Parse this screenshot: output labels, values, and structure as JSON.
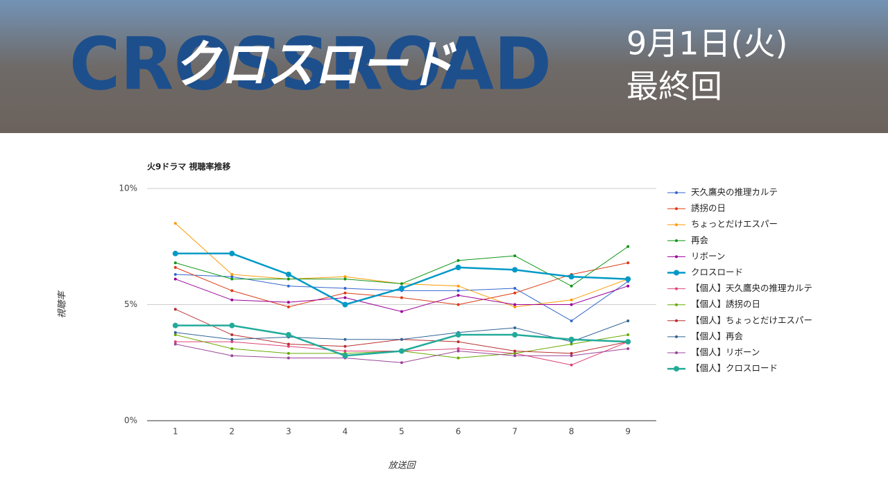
{
  "header": {
    "logo_bg": "CROSSROAD",
    "logo": "クロスロード",
    "date": "9月1日(火)",
    "subtitle": "最終回"
  },
  "chart_data": {
    "type": "line",
    "title": "火9ドラマ 視聴率推移",
    "y_label": "視聴率",
    "x_label": "放送回",
    "categories": [
      "1",
      "2",
      "3",
      "4",
      "5",
      "6",
      "7",
      "8",
      "9"
    ],
    "ylim": [
      0,
      10
    ],
    "yticks": [
      {
        "value": 0,
        "label": "0%"
      },
      {
        "value": 5,
        "label": "5%"
      },
      {
        "value": 10,
        "label": "10%"
      }
    ],
    "grid": true,
    "legend": "right",
    "series": [
      {
        "name": "天久鷹央の推理カルテ",
        "color": "#3366cc",
        "line_width": 1,
        "values": [
          6.3,
          6.2,
          5.8,
          5.7,
          5.6,
          5.6,
          5.7,
          4.3,
          6.0
        ]
      },
      {
        "name": "誘拐の日",
        "color": "#dc3912",
        "line_width": 1,
        "values": [
          6.6,
          5.6,
          4.9,
          5.5,
          5.3,
          5.0,
          5.5,
          6.3,
          6.8
        ]
      },
      {
        "name": "ちょっとだけエスパー",
        "color": "#ff9900",
        "line_width": 1,
        "values": [
          8.5,
          6.3,
          6.1,
          6.2,
          5.9,
          5.8,
          4.9,
          5.2,
          6.1
        ]
      },
      {
        "name": "再会",
        "color": "#109618",
        "line_width": 1,
        "values": [
          6.8,
          6.1,
          6.1,
          6.1,
          5.9,
          6.9,
          7.1,
          5.8,
          7.5
        ]
      },
      {
        "name": "リボーン",
        "color": "#990099",
        "line_width": 1,
        "values": [
          6.1,
          5.2,
          5.1,
          5.3,
          4.7,
          5.4,
          5.0,
          5.0,
          5.8
        ]
      },
      {
        "name": "クロスロード",
        "color": "#0099c6",
        "line_width": 2.5,
        "values": [
          7.2,
          7.2,
          6.3,
          5.0,
          5.7,
          6.6,
          6.5,
          6.2,
          6.1
        ]
      },
      {
        "name": "【個人】天久鷹央の推理カルテ",
        "color": "#dd4477",
        "line_width": 1,
        "values": [
          3.4,
          3.4,
          3.2,
          3.0,
          3.0,
          3.1,
          2.9,
          2.4,
          3.4
        ]
      },
      {
        "name": "【個人】誘拐の日",
        "color": "#66aa00",
        "line_width": 1,
        "values": [
          3.7,
          3.1,
          2.9,
          2.9,
          3.0,
          2.7,
          2.9,
          3.3,
          3.7
        ]
      },
      {
        "name": "【個人】ちょっとだけエスパー",
        "color": "#b82e2e",
        "line_width": 1,
        "values": [
          4.8,
          3.7,
          3.3,
          3.2,
          3.5,
          3.4,
          3.0,
          2.9,
          3.4
        ]
      },
      {
        "name": "【個人】再会",
        "color": "#316395",
        "line_width": 1,
        "values": [
          3.8,
          3.5,
          3.6,
          3.5,
          3.5,
          3.8,
          4.0,
          3.4,
          4.3
        ]
      },
      {
        "name": "【個人】リボーン",
        "color": "#994499",
        "line_width": 1,
        "values": [
          3.3,
          2.8,
          2.7,
          2.7,
          2.5,
          3.0,
          2.8,
          2.8,
          3.1
        ]
      },
      {
        "name": "【個人】クロスロード",
        "color": "#22aa99",
        "line_width": 2.5,
        "values": [
          4.1,
          4.1,
          3.7,
          2.8,
          3.0,
          3.7,
          3.7,
          3.5,
          3.4
        ]
      }
    ]
  }
}
